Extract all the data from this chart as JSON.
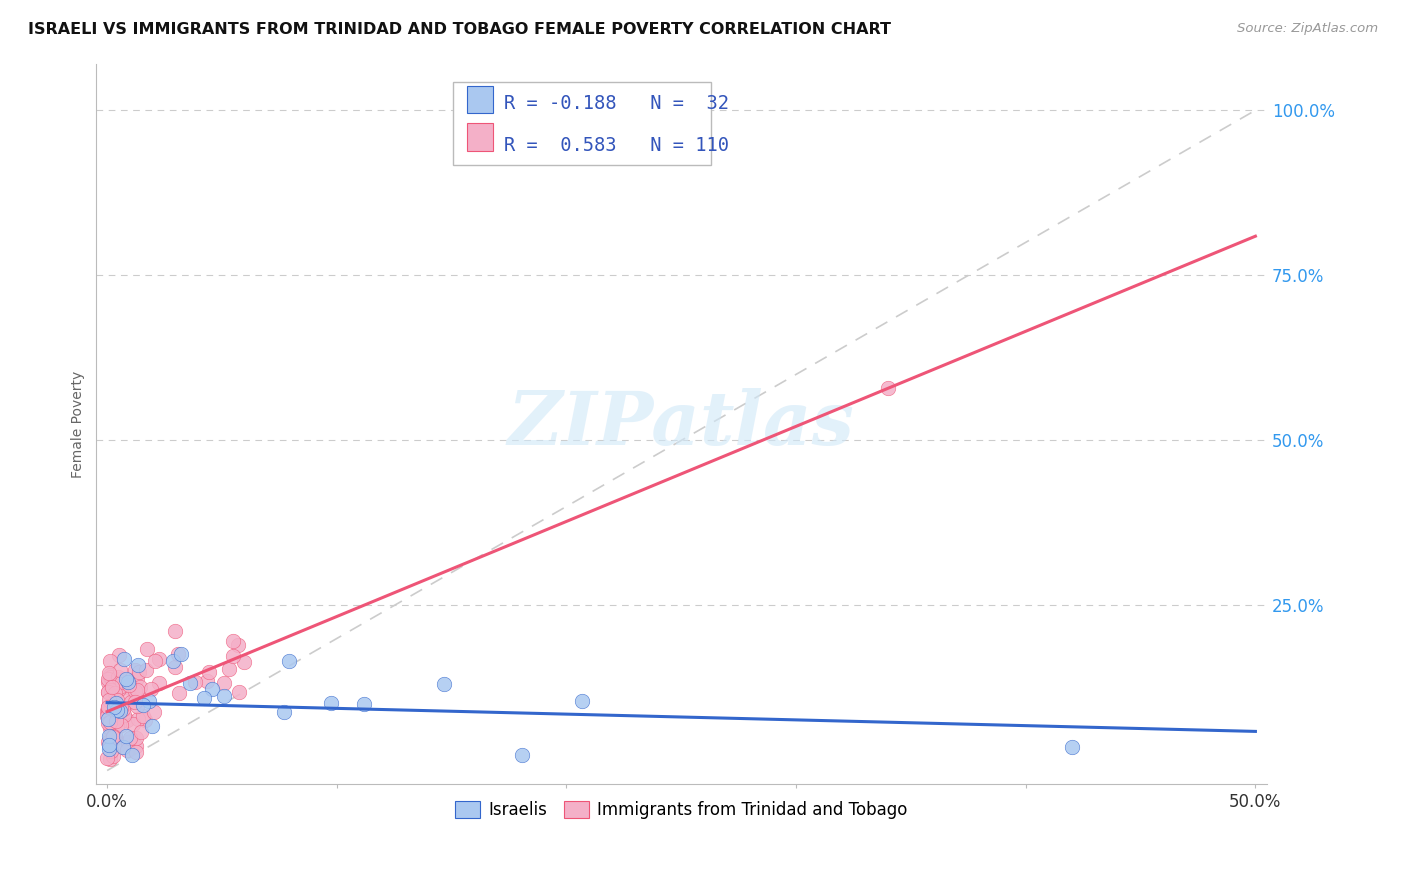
{
  "title": "ISRAELI VS IMMIGRANTS FROM TRINIDAD AND TOBAGO FEMALE POVERTY CORRELATION CHART",
  "source": "Source: ZipAtlas.com",
  "ylabel": "Female Poverty",
  "color_israeli": "#aac8f0",
  "color_tt": "#f4b0c8",
  "line_color_israeli": "#3366cc",
  "line_color_tt": "#ee5577",
  "line_color_diagonal": "#cccccc",
  "legend_text_color": "#3355bb",
  "isr_intercept": 0.115,
  "isr_slope": -0.18,
  "tt_intercept": 0.095,
  "tt_slope": 1.15
}
